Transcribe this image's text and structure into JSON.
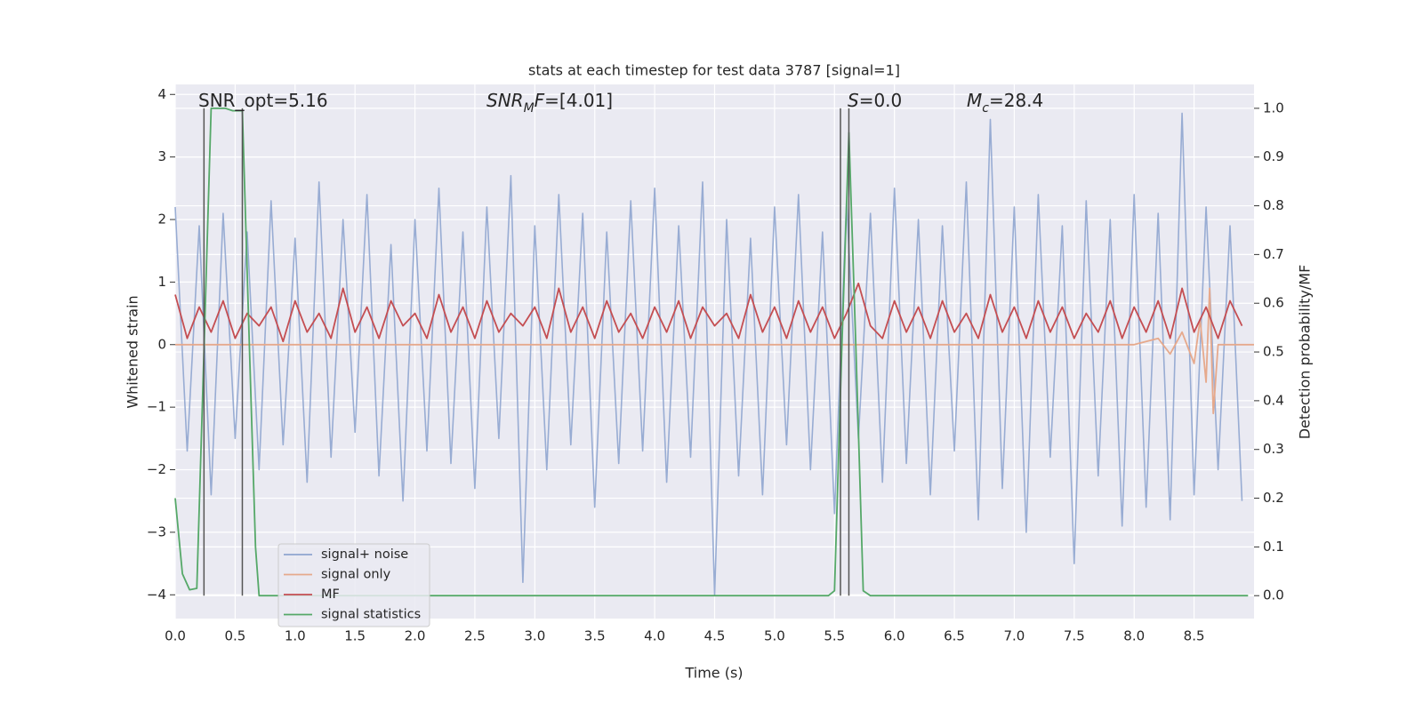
{
  "chart_data": {
    "type": "line",
    "title": "stats at each timestep for test data 3787 [signal=1]",
    "xlabel": "Time (s)",
    "ylabel": "Whitened strain",
    "y2label": "Detection probability/MF",
    "xlim": [
      0,
      9
    ],
    "ylim": [
      -4.38,
      4.16
    ],
    "y2lim": [
      -0.047,
      1.049
    ],
    "xticks": [
      {
        "value": 0,
        "label": "0.0"
      },
      0.5,
      {
        "value": 1,
        "label": "1.0"
      },
      1.5,
      {
        "value": 2,
        "label": "2.0"
      },
      2.5,
      {
        "value": 3,
        "label": "3.0"
      },
      3.5,
      {
        "value": 4,
        "label": "4.0"
      },
      4.5,
      {
        "value": 5,
        "label": "5.0"
      },
      5.5,
      {
        "value": 6,
        "label": "6.0"
      },
      6.5,
      {
        "value": 7,
        "label": "7.0"
      },
      7.5,
      {
        "value": 8,
        "label": "8.0"
      },
      8.5
    ],
    "yticks": [
      {
        "value": -4,
        "label": "−4"
      },
      {
        "value": -3,
        "label": "−3"
      },
      {
        "value": -2,
        "label": "−2"
      },
      {
        "value": -1,
        "label": "−1"
      },
      0,
      1,
      2,
      3,
      4
    ],
    "y2ticks": [
      {
        "value": 0,
        "label": "0.0"
      },
      0.1,
      0.2,
      0.3,
      0.4,
      0.5,
      0.6,
      0.7,
      0.8,
      0.9,
      {
        "value": 1,
        "label": "1.0"
      }
    ],
    "grid": true,
    "legend": "lower left",
    "annotations": [
      [
        {
          "text": "SNR_opt=5.16"
        }
      ],
      [
        {
          "text": "SNR",
          "italic": true
        },
        {
          "text": "M",
          "italic": true,
          "sub": true
        },
        {
          "text": "F",
          "italic": true
        },
        {
          "text": "=[4.01]"
        }
      ],
      [
        {
          "text": "S",
          "italic": true
        },
        {
          "text": "=0.0"
        }
      ],
      [
        {
          "text": "M",
          "italic": true
        },
        {
          "text": "c",
          "italic": true,
          "sub": true
        },
        {
          "text": "=28.4"
        }
      ]
    ],
    "vlines": [
      0.24,
      0.56,
      5.55,
      5.62
    ],
    "x": [
      0,
      0.1,
      0.2,
      0.3,
      0.4,
      0.5,
      0.6,
      0.7,
      0.8,
      0.9,
      1,
      1.1,
      1.2,
      1.3,
      1.4,
      1.5,
      1.6,
      1.7,
      1.8,
      1.9,
      2,
      2.1,
      2.2,
      2.3,
      2.4,
      2.5,
      2.6,
      2.7,
      2.8,
      2.9,
      3,
      3.1,
      3.2,
      3.3,
      3.4,
      3.5,
      3.6,
      3.7,
      3.8,
      3.9,
      4,
      4.1,
      4.2,
      4.3,
      4.4,
      4.5,
      4.6,
      4.7,
      4.8,
      4.9,
      5,
      5.1,
      5.2,
      5.3,
      5.4,
      5.5,
      5.6,
      5.7,
      5.8,
      5.9,
      6,
      6.1,
      6.2,
      6.3,
      6.4,
      6.5,
      6.6,
      6.7,
      6.8,
      6.9,
      7,
      7.1,
      7.2,
      7.3,
      7.4,
      7.5,
      7.6,
      7.7,
      7.8,
      7.9,
      8,
      8.1,
      8.2,
      8.3,
      8.4,
      8.5,
      8.6,
      8.7,
      8.8,
      8.9
    ],
    "series": [
      {
        "name": "signal+ noise",
        "color": "#8fa5cf",
        "values": [
          2.2,
          -1.7,
          1.9,
          -2.4,
          2.1,
          -1.5,
          1.8,
          -2.0,
          2.3,
          -1.6,
          1.7,
          -2.2,
          2.6,
          -1.8,
          2.0,
          -1.4,
          2.4,
          -2.1,
          1.6,
          -2.5,
          2.0,
          -1.7,
          2.5,
          -1.9,
          1.8,
          -2.3,
          2.2,
          -1.5,
          2.7,
          -3.8,
          1.9,
          -2.0,
          2.4,
          -1.6,
          2.1,
          -2.6,
          1.8,
          -1.9,
          2.3,
          -1.7,
          2.5,
          -2.2,
          1.9,
          -1.8,
          2.6,
          -4.0,
          2.0,
          -2.1,
          1.7,
          -2.4,
          2.2,
          -1.6,
          2.4,
          -2.0,
          1.8,
          -2.7,
          2.3,
          -1.5,
          2.1,
          -2.2,
          2.5,
          -1.9,
          2.0,
          -2.4,
          1.9,
          -1.7,
          2.6,
          -2.8,
          3.6,
          -2.3,
          2.2,
          -3.0,
          2.4,
          -1.8,
          1.9,
          -3.5,
          2.3,
          -2.1,
          2.0,
          -2.9,
          2.4,
          -2.6,
          2.1,
          -2.8,
          3.7,
          -2.4,
          2.2,
          -2.0,
          1.9,
          -2.5
        ]
      },
      {
        "name": "signal only",
        "color": "#e6a98c",
        "x": [
          0,
          8.0,
          8.2,
          8.3,
          8.4,
          8.5,
          8.55,
          8.6,
          8.63,
          8.66,
          8.7,
          9.0
        ],
        "values": [
          0,
          0,
          0.1,
          -0.15,
          0.2,
          -0.3,
          0.4,
          -0.6,
          0.9,
          -1.1,
          0,
          0
        ]
      },
      {
        "name": "MF",
        "color": "#c44e52",
        "values": [
          0.8,
          0.1,
          0.6,
          0.2,
          0.7,
          0.1,
          0.5,
          0.3,
          0.6,
          0.05,
          0.7,
          0.2,
          0.5,
          0.1,
          0.9,
          0.2,
          0.6,
          0.1,
          0.7,
          0.3,
          0.5,
          0.1,
          0.8,
          0.2,
          0.6,
          0.1,
          0.7,
          0.2,
          0.5,
          0.3,
          0.6,
          0.1,
          0.9,
          0.2,
          0.6,
          0.1,
          0.7,
          0.2,
          0.5,
          0.1,
          0.6,
          0.2,
          0.7,
          0.1,
          0.6,
          0.3,
          0.5,
          0.1,
          0.8,
          0.2,
          0.6,
          0.1,
          0.7,
          0.2,
          0.6,
          0.1,
          0.5,
          0.98,
          0.3,
          0.1,
          0.7,
          0.2,
          0.6,
          0.1,
          0.7,
          0.2,
          0.5,
          0.1,
          0.8,
          0.2,
          0.6,
          0.1,
          0.7,
          0.2,
          0.6,
          0.1,
          0.5,
          0.2,
          0.7,
          0.1,
          0.6,
          0.2,
          0.7,
          0.1,
          0.9,
          0.2,
          0.6,
          0.1,
          0.7,
          0.3
        ]
      },
      {
        "name": "signal statistics",
        "color": "#55a868",
        "axis": "y2",
        "x": [
          0,
          0.06,
          0.12,
          0.18,
          0.24,
          0.3,
          0.36,
          0.42,
          0.48,
          0.56,
          0.62,
          0.67,
          0.7,
          5.45,
          5.5,
          5.56,
          5.62,
          5.68,
          5.74,
          5.8,
          8.95
        ],
        "values": [
          0.2,
          0.045,
          0.012,
          0.015,
          0.5,
          1.0,
          1.0,
          1.0,
          0.995,
          0.995,
          0.5,
          0.1,
          0.0,
          0.0,
          0.01,
          0.5,
          0.95,
          0.5,
          0.01,
          0.0,
          0.0
        ]
      }
    ]
  }
}
